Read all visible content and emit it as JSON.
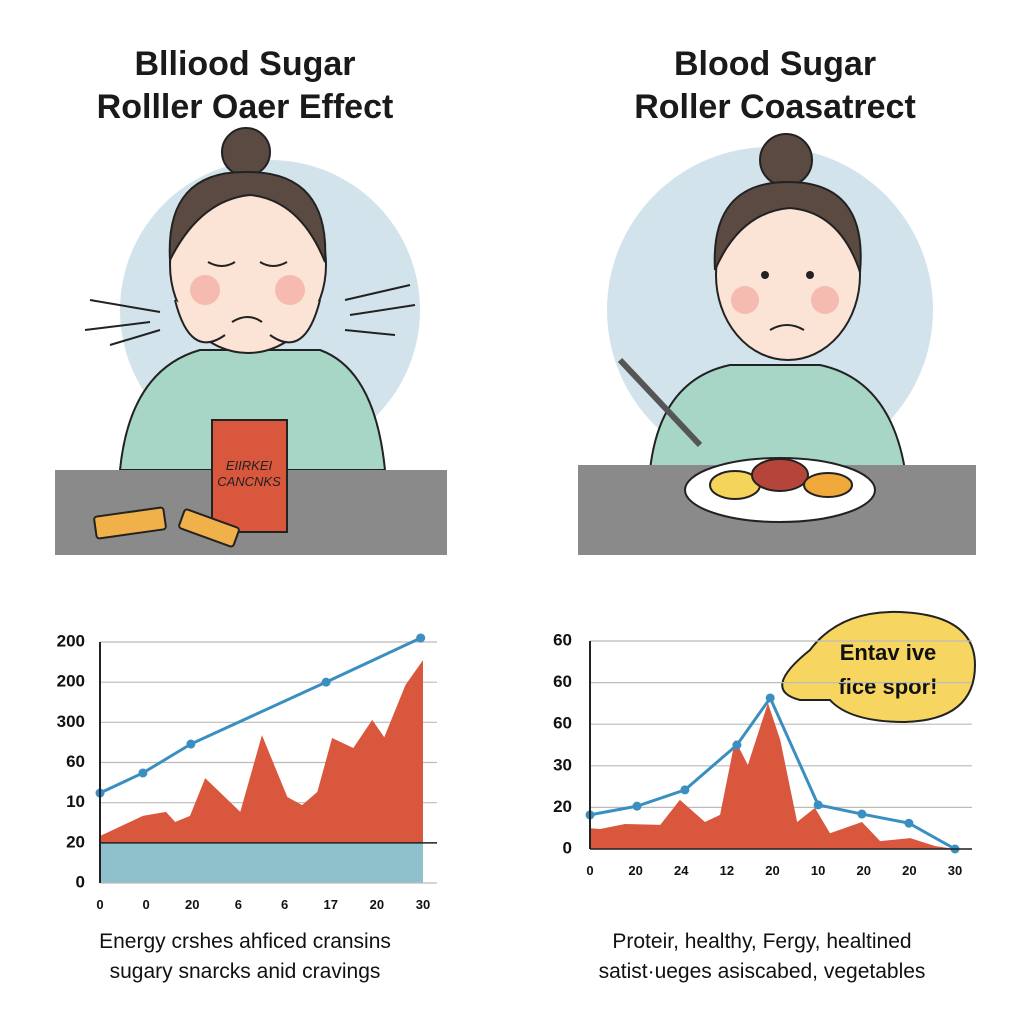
{
  "panels": [
    {
      "title": [
        "Blliood Sugar",
        "Rolller Oaer Effect"
      ],
      "snack_box_label": [
        "EIIRKEI",
        "CANCNKS"
      ],
      "caption": [
        "Energy crshes ahficed cransins",
        "sugary snarcks anid cravings"
      ]
    },
    {
      "title": [
        "Blood Sugar",
        "Roller Coasatrect"
      ],
      "callout": [
        "Entav ive",
        "fice spor!"
      ],
      "caption": [
        "Proteir, healthy, Fergy, healtined",
        "satist·ueges asiscabed, vegetables"
      ]
    }
  ],
  "chart_data": [
    {
      "type": "area",
      "ylim": [
        0,
        6
      ],
      "yticks": [
        0,
        {
          "value": 1,
          "label": "20"
        },
        {
          "value": 2,
          "label": "10"
        },
        {
          "value": 3,
          "label": "60"
        },
        {
          "value": 4,
          "label": "300"
        },
        {
          "value": 5,
          "label": "200"
        },
        {
          "value": 6,
          "label": "200"
        }
      ],
      "xlim": [
        0,
        7
      ],
      "xticks": [
        0,
        {
          "value": 1,
          "label": "0"
        },
        {
          "value": 2,
          "label": "20"
        },
        {
          "value": 3,
          "label": "6"
        },
        {
          "value": 4,
          "label": "6"
        },
        {
          "value": 5,
          "label": "17"
        },
        {
          "value": 6,
          "label": "20"
        },
        {
          "value": 7,
          "label": "30"
        }
      ],
      "grid": true,
      "area_base": 1,
      "band": {
        "from": 0,
        "to": 1,
        "color": "#8fc1cd"
      },
      "series": [
        {
          "kind": "area",
          "color": "#d9573d",
          "x": [
            0,
            0.93,
            1.43,
            1.63,
            1.95,
            2.28,
            3.04,
            3.51,
            4.06,
            4.38,
            4.71,
            5.03,
            5.49,
            5.9,
            6.16,
            6.62,
            7
          ],
          "values": [
            1.17,
            1.67,
            1.77,
            1.52,
            1.67,
            2.61,
            1.77,
            3.68,
            2.14,
            1.94,
            2.27,
            3.61,
            3.36,
            4.06,
            3.63,
            4.93,
            5.55
          ]
        },
        {
          "kind": "line",
          "color": "#3a8fc0",
          "x": [
            0,
            0.93,
            1.97,
            4.9,
            6.95
          ],
          "values": [
            2.24,
            2.74,
            3.46,
            5.0,
            6.1
          ]
        }
      ]
    },
    {
      "type": "area",
      "ylim": [
        0,
        5
      ],
      "yticks": [
        0,
        {
          "value": 1,
          "label": "20"
        },
        {
          "value": 2,
          "label": "30"
        },
        {
          "value": 3,
          "label": "60"
        },
        {
          "value": 4,
          "label": "60"
        },
        {
          "value": 5,
          "label": "60"
        }
      ],
      "xlim": [
        0,
        8
      ],
      "xticks": [
        0,
        {
          "value": 1,
          "label": "20"
        },
        {
          "value": 2,
          "label": "24"
        },
        {
          "value": 3,
          "label": "12"
        },
        {
          "value": 4,
          "label": "20"
        },
        {
          "value": 5,
          "label": "10"
        },
        {
          "value": 6,
          "label": "20"
        },
        {
          "value": 7,
          "label": "20"
        },
        {
          "value": 8,
          "label": "30"
        }
      ],
      "grid": true,
      "area_base": 0,
      "series": [
        {
          "kind": "area",
          "color": "#d9573d",
          "x": [
            0,
            0.22,
            0.77,
            1.54,
            1.97,
            2.52,
            2.85,
            3.18,
            3.46,
            3.9,
            4.17,
            4.54,
            4.93,
            5.26,
            5.96,
            6.36,
            7.02,
            7.57,
            8
          ],
          "values": [
            0.5,
            0.48,
            0.6,
            0.58,
            1.18,
            0.65,
            0.82,
            2.62,
            2.02,
            3.51,
            2.62,
            0.65,
            0.99,
            0.38,
            0.65,
            0.19,
            0.26,
            0.07,
            0
          ]
        },
        {
          "kind": "line",
          "color": "#3a8fc0",
          "x": [
            0,
            1.03,
            2.08,
            3.22,
            3.95,
            5.0,
            5.96,
            6.99,
            8
          ],
          "values": [
            0.82,
            1.03,
            1.42,
            2.5,
            3.63,
            1.06,
            0.84,
            0.62,
            0
          ]
        }
      ]
    }
  ]
}
